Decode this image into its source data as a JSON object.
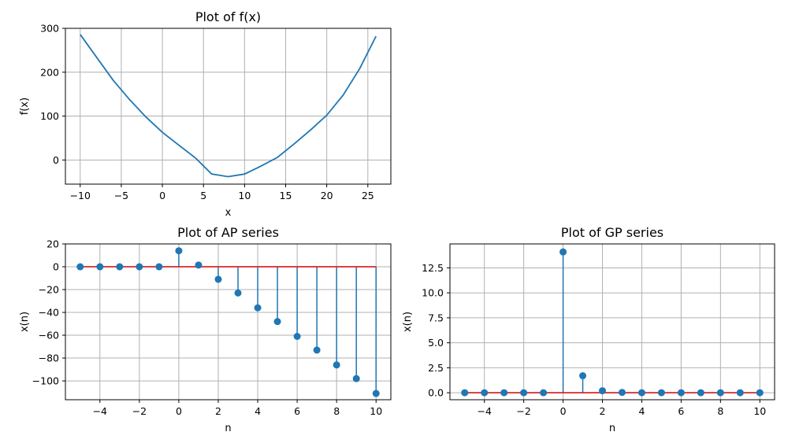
{
  "chart_data": [
    {
      "type": "line",
      "title": "Plot of f(x)",
      "xlabel": "x",
      "ylabel": "f(x)",
      "xlim": [
        -11.8,
        27.8
      ],
      "ylim": [
        -55,
        300
      ],
      "xticks": [
        -10,
        -5,
        0,
        5,
        10,
        15,
        20,
        25
      ],
      "xtick_labels": [
        "−10",
        "−5",
        "0",
        "5",
        "10",
        "15",
        "20",
        "25"
      ],
      "yticks": [
        0,
        100,
        200,
        300
      ],
      "ytick_labels": [
        "0",
        "100",
        "200",
        "300"
      ],
      "grid": true,
      "color": "#1f77b4",
      "x": [
        -10,
        -8,
        -6,
        -4,
        -2,
        0,
        2,
        4,
        6,
        8,
        10,
        12,
        14,
        16,
        18,
        20,
        22,
        24,
        26
      ],
      "y": [
        286,
        234,
        182,
        138,
        98,
        63,
        34,
        5,
        -32,
        -38,
        -32,
        -14,
        6,
        36,
        68,
        102,
        148,
        208,
        282
      ]
    },
    {
      "type": "stem",
      "title": "Plot of AP series",
      "xlabel": "n",
      "ylabel": "x(n)",
      "xlim": [
        -5.75,
        10.75
      ],
      "ylim": [
        -116.5,
        20
      ],
      "xticks": [
        -4,
        -2,
        0,
        2,
        4,
        6,
        8,
        10
      ],
      "xtick_labels": [
        "−4",
        "−2",
        "0",
        "2",
        "4",
        "6",
        "8",
        "10"
      ],
      "yticks": [
        20,
        0,
        -20,
        -40,
        -60,
        -80,
        -100
      ],
      "ytick_labels": [
        "20",
        "0",
        "−20",
        "−40",
        "−60",
        "−80",
        "−100"
      ],
      "grid": true,
      "color": "#1f77b4",
      "baseline_color": "#d62728",
      "x": [
        -5,
        -4,
        -3,
        -2,
        -1,
        0,
        1,
        2,
        3,
        4,
        5,
        6,
        7,
        8,
        9,
        10
      ],
      "y": [
        0,
        0,
        0,
        0,
        0,
        14,
        1.5,
        -11,
        -23,
        -36,
        -48,
        -61,
        -73,
        -86,
        -98,
        -111
      ]
    },
    {
      "type": "stem",
      "title": "Plot of GP series",
      "xlabel": "n",
      "ylabel": "x(n)",
      "xlim": [
        -5.75,
        10.75
      ],
      "ylim": [
        -0.7,
        14.9
      ],
      "xticks": [
        -4,
        -2,
        0,
        2,
        4,
        6,
        8,
        10
      ],
      "xtick_labels": [
        "−4",
        "−2",
        "0",
        "2",
        "4",
        "6",
        "8",
        "10"
      ],
      "yticks": [
        0,
        2.5,
        5,
        7.5,
        10,
        12.5
      ],
      "ytick_labels": [
        "0.0",
        "2.5",
        "5.0",
        "7.5",
        "10.0",
        "12.5"
      ],
      "grid": true,
      "color": "#1f77b4",
      "baseline_color": "#d62728",
      "x": [
        -5,
        -4,
        -3,
        -2,
        -1,
        0,
        1,
        2,
        3,
        4,
        5,
        6,
        7,
        8,
        9,
        10
      ],
      "y": [
        0,
        0,
        0,
        0,
        0,
        14.1,
        1.7,
        0.2,
        0.03,
        0,
        0,
        0,
        0,
        0,
        0,
        0
      ]
    }
  ]
}
